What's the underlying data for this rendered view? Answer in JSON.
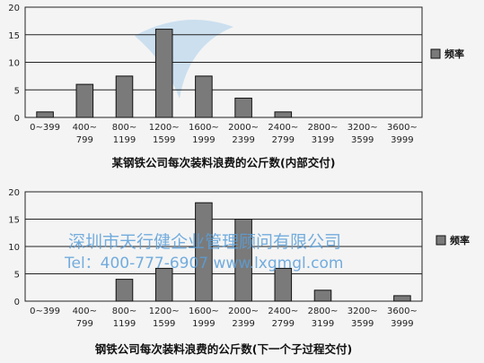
{
  "chart_data": [
    {
      "type": "bar",
      "title": "某钢铁公司每次装料浪费的公斤数(内部交付)",
      "categories": [
        [
          "0~399"
        ],
        [
          "400~",
          "799"
        ],
        [
          "800~",
          "1199"
        ],
        [
          "1200~",
          "1599"
        ],
        [
          "1600~",
          "1999"
        ],
        [
          "2000~",
          "2399"
        ],
        [
          "2400~",
          "2799"
        ],
        [
          "2800~",
          "3199"
        ],
        [
          "3200~",
          "3599"
        ],
        [
          "3600~",
          "3999"
        ]
      ],
      "series": [
        {
          "name": "频率",
          "values": [
            1,
            6,
            7.5,
            16,
            7.5,
            3.5,
            1,
            0,
            0,
            0
          ]
        }
      ],
      "ylim": [
        0,
        20
      ],
      "yticks": [
        0,
        5,
        10,
        15,
        20
      ],
      "grid": "horizontal",
      "legend": "right"
    },
    {
      "type": "bar",
      "title": "钢铁公司每次装料浪费的公斤数(下一个子过程交付)",
      "categories": [
        [
          "0~399"
        ],
        [
          "400~",
          "799"
        ],
        [
          "800~",
          "1199"
        ],
        [
          "1200~",
          "1599"
        ],
        [
          "1600~",
          "1999"
        ],
        [
          "2000~",
          "2399"
        ],
        [
          "2400~",
          "2799"
        ],
        [
          "2800~",
          "3199"
        ],
        [
          "3200~",
          "3599"
        ],
        [
          "3600~",
          "3999"
        ]
      ],
      "series": [
        {
          "name": "频率",
          "values": [
            0,
            0,
            4,
            6,
            18,
            15,
            6,
            2,
            0,
            1
          ]
        }
      ],
      "ylim": [
        0,
        20
      ],
      "yticks": [
        0,
        5,
        10,
        15,
        20
      ],
      "grid": "horizontal",
      "legend": "right"
    }
  ],
  "watermark": {
    "line1": "深圳市天行健企业管理顾问有限公司",
    "line2": "Tel：400-777-6907 www.lxgmgl.com"
  },
  "colors": {
    "bar": "#7a7a7a",
    "axis": "#222222",
    "watermark": "#5a9fd8"
  }
}
